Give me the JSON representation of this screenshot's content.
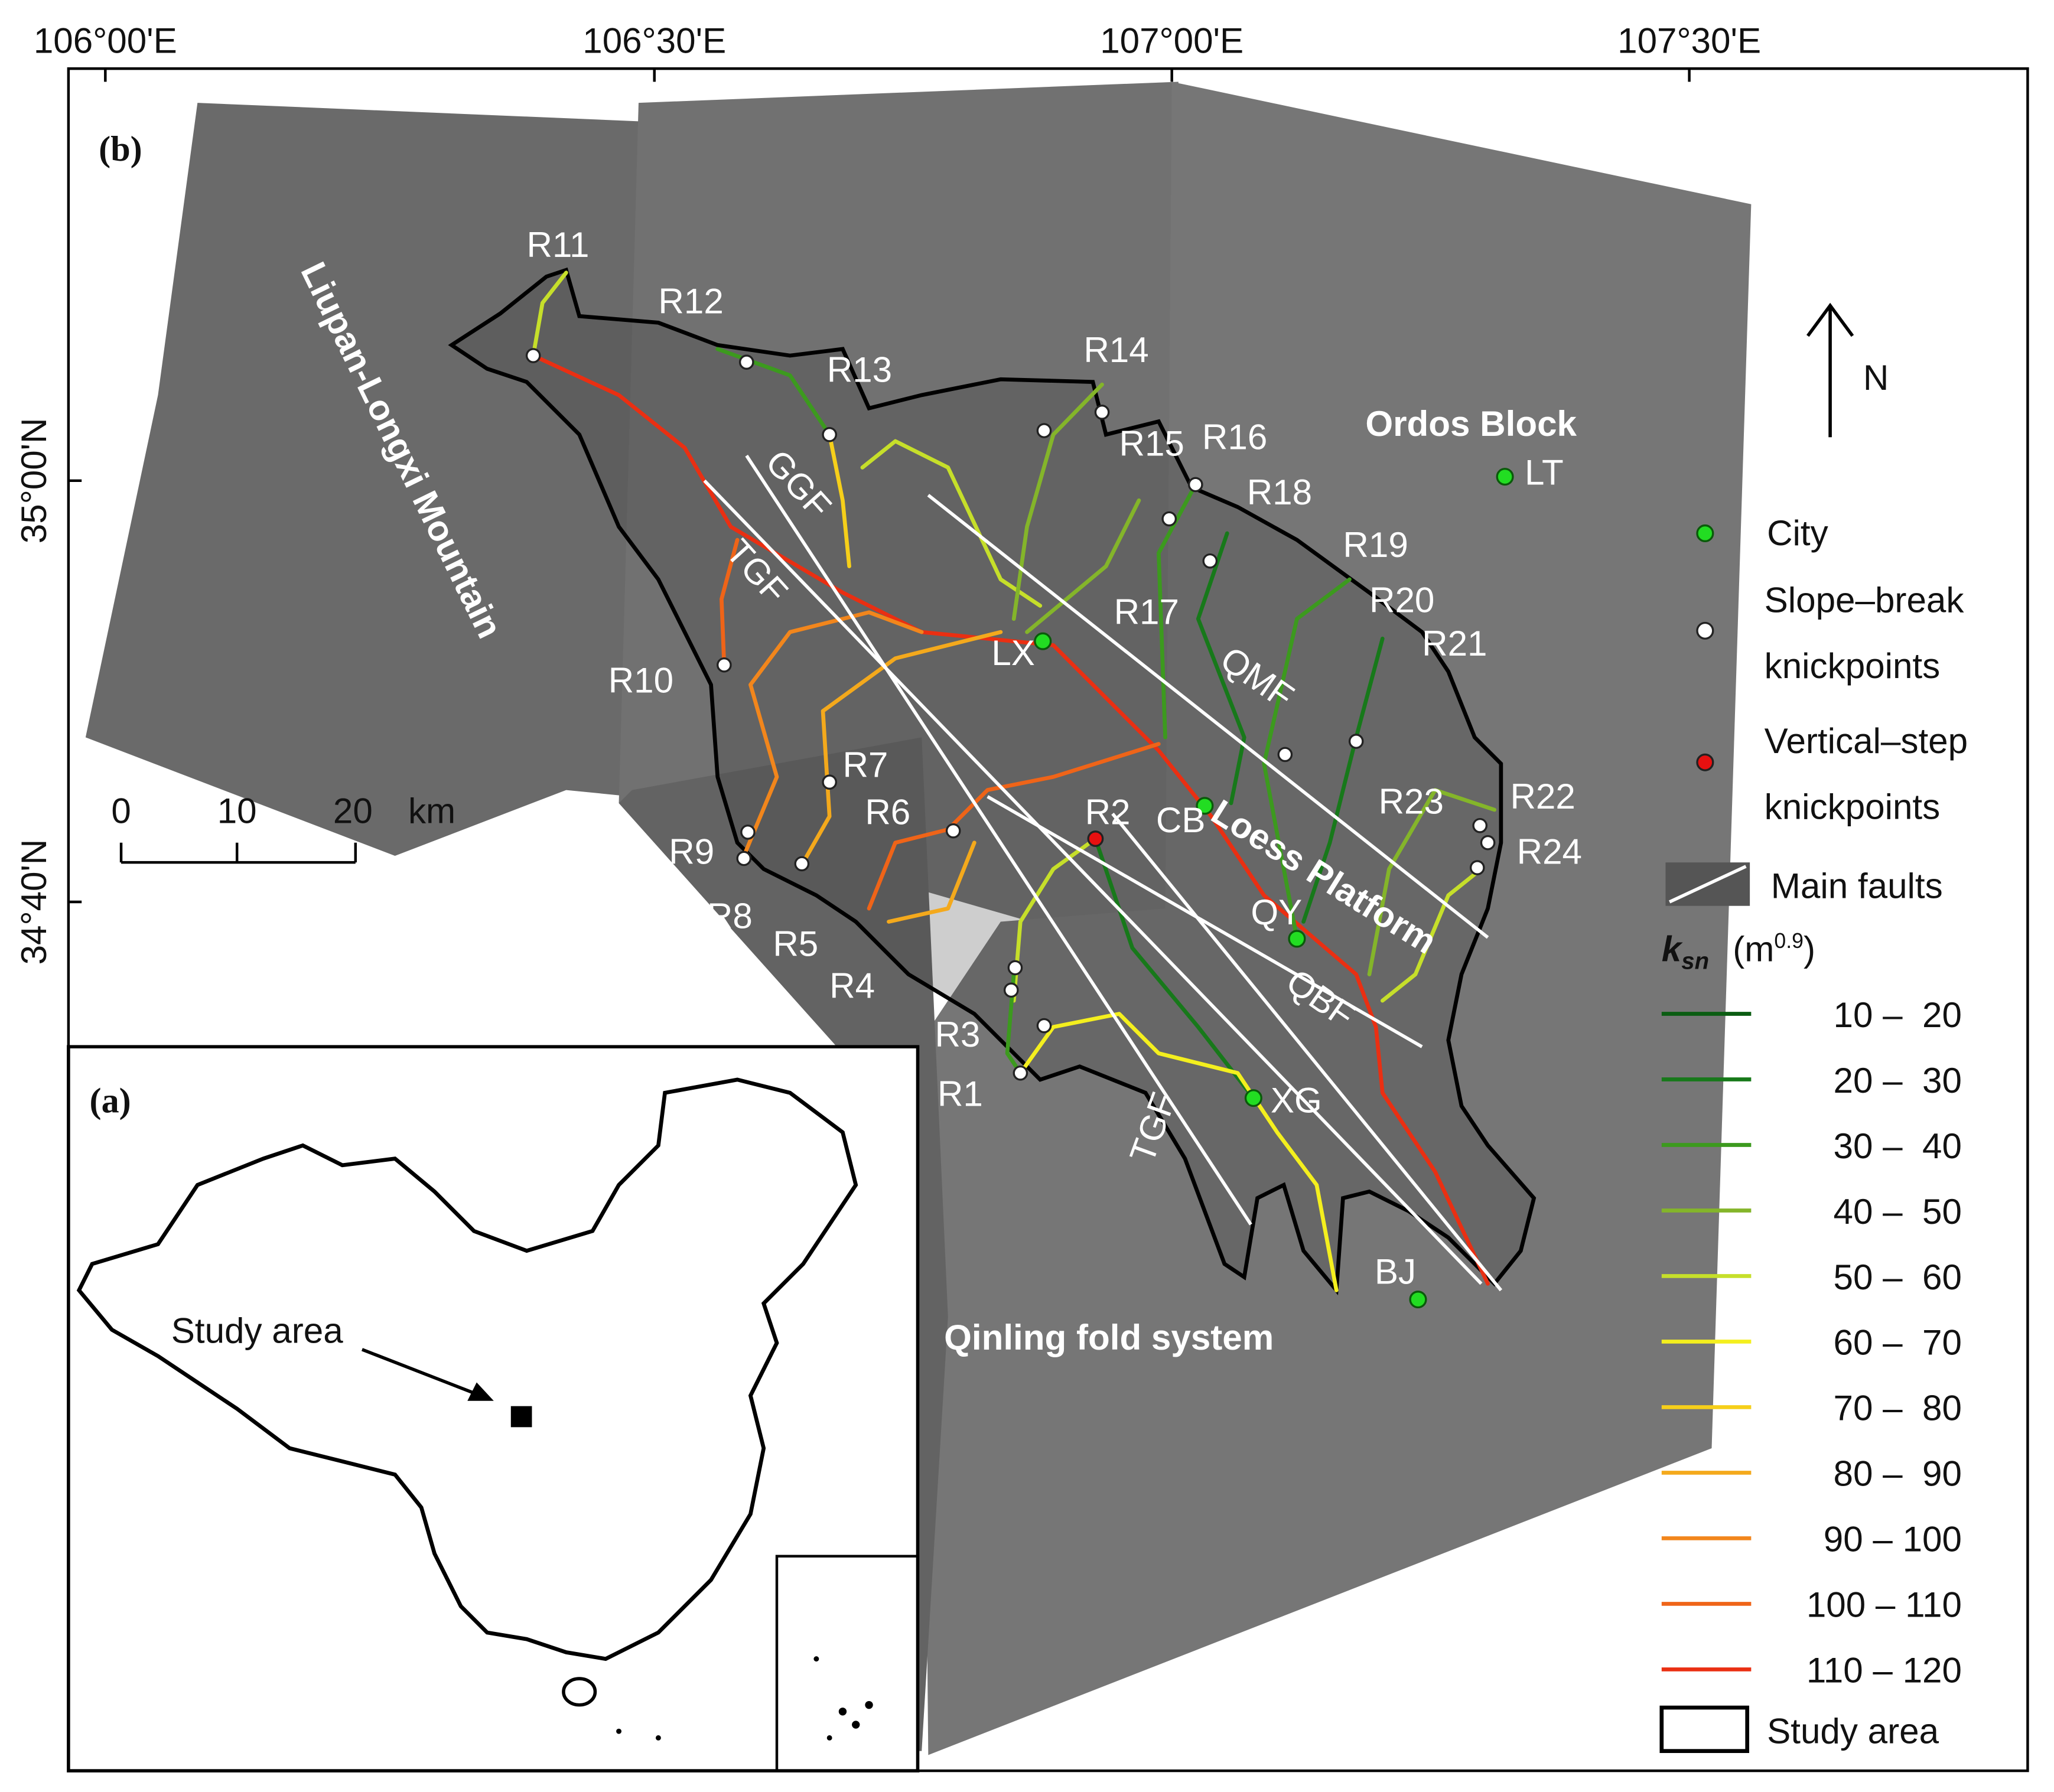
{
  "panel_b": {
    "label": "(b)",
    "lon_ticks": [
      "106°00'E",
      "106°30'E",
      "107°00'E",
      "107°30'E"
    ],
    "lat_ticks": [
      "35°00'N",
      "34°40'N"
    ],
    "rivers": [
      "R1",
      "R2",
      "R3",
      "R4",
      "R5",
      "R6",
      "R7",
      "R8",
      "R9",
      "R10",
      "R11",
      "R12",
      "R13",
      "R14",
      "R15",
      "R16",
      "R17",
      "R18",
      "R19",
      "R20",
      "R21",
      "R22",
      "R23",
      "R24"
    ],
    "cities": [
      "LX",
      "CB",
      "QY",
      "XG",
      "BJ",
      "LT"
    ],
    "faults": [
      "GGF",
      "TGF",
      "QMF",
      "QBF",
      "TGF"
    ],
    "regions": [
      "Liupan-Longxi Mountain",
      "Ordos Block",
      "Loess Platform",
      "Qinling fold system"
    ],
    "north": "N"
  },
  "scale_bar": {
    "ticks": [
      0,
      10,
      20
    ],
    "unit": "km"
  },
  "panel_a": {
    "label": "(a)",
    "annotation": "Study area"
  },
  "legend": {
    "city": "City",
    "slope_break": [
      "Slope–break",
      "knickpoints"
    ],
    "vertical_step": [
      "Vertical–step",
      "knickpoints"
    ],
    "faults": "Main faults",
    "ksn_symbol": "k",
    "ksn_subscript": "sn",
    "ksn_unit": "(m",
    "ksn_unit_exponent": "0.9",
    "ksn_unit_close": ")",
    "ksn_classes": [
      {
        "label": "10 –  20",
        "color": "#0b5d12"
      },
      {
        "label": "20 –  30",
        "color": "#17791a"
      },
      {
        "label": "30 –  40",
        "color": "#3c9a1e"
      },
      {
        "label": "40 –  50",
        "color": "#84b52a"
      },
      {
        "label": "50 –  60",
        "color": "#c6df2a"
      },
      {
        "label": "60 –  70",
        "color": "#f4ef1e"
      },
      {
        "label": "70 –  80",
        "color": "#f6cf1a"
      },
      {
        "label": "80 –  90",
        "color": "#f4a91c"
      },
      {
        "label": "90 – 100",
        "color": "#f2861c"
      },
      {
        "label": "100 – 110",
        "color": "#ef6418"
      },
      {
        "label": "110 – 120",
        "color": "#ea2f12"
      }
    ],
    "study_area": "Study area"
  }
}
